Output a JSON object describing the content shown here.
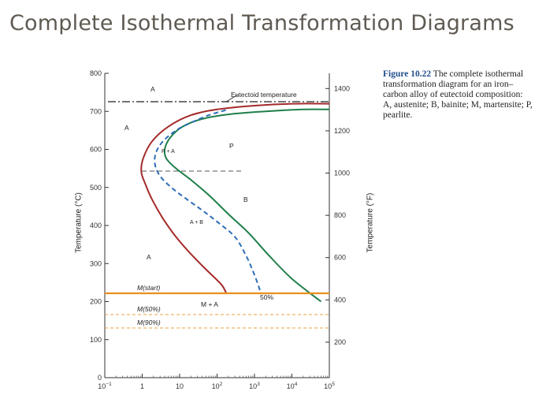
{
  "slide": {
    "title": "Complete Isothermal Transformation Diagrams"
  },
  "caption": {
    "figure_label": "Figure 10.22",
    "text": "The complete isothermal transformation diagram for an iron–carbon alloy of eutectoid composition: A, austenite; B, bainite; M, martensite; P, pearlite."
  },
  "chart_data": {
    "type": "line",
    "x_scale": "log",
    "xlim": [
      0.1,
      100000
    ],
    "ylim": [
      0,
      800
    ],
    "xticks": [
      0.1,
      1,
      10,
      100,
      1000,
      10000,
      100000
    ],
    "xtick_labels": [
      {
        "base": "10",
        "exp": "−1"
      },
      {
        "base": "1",
        "exp": ""
      },
      {
        "base": "10",
        "exp": ""
      },
      {
        "base": "10",
        "exp": "2"
      },
      {
        "base": "10",
        "exp": "3"
      },
      {
        "base": "10",
        "exp": "4"
      },
      {
        "base": "10",
        "exp": "5"
      }
    ],
    "yticks": [
      0,
      100,
      200,
      300,
      400,
      500,
      600,
      700,
      800
    ],
    "ytick_labels": [
      "0",
      "100",
      "200",
      "300",
      "400",
      "500",
      "600",
      "700",
      "800"
    ],
    "ylabel": "Temperature (°C)",
    "y2ticks_F": [
      200,
      400,
      600,
      800,
      1000,
      1200,
      1400
    ],
    "y2tick_labels": [
      "200",
      "400",
      "600",
      "800",
      "1000",
      "1200",
      "1400"
    ],
    "y2label": "Temperature (°F)",
    "series": [
      {
        "color": "#a52a2a",
        "style": "solid",
        "x": [
          180,
          130,
          50,
          20,
          8,
          3.5,
          1.8,
          1.2,
          0.95,
          1.05,
          1.8,
          5,
          20,
          100,
          1000,
          10000,
          100000
        ],
        "y": [
          220,
          245,
          285,
          325,
          370,
          420,
          470,
          510,
          540,
          575,
          620,
          660,
          690,
          705,
          715,
          720,
          720
        ]
      },
      {
        "color": "#1f7f4a",
        "style": "solid",
        "x": [
          60000,
          10000,
          2500,
          700,
          200,
          60,
          20,
          8,
          4.5,
          4,
          5.5,
          12,
          40,
          200,
          2000,
          20000,
          100000
        ],
        "y": [
          200,
          260,
          320,
          380,
          430,
          480,
          520,
          550,
          575,
          600,
          630,
          660,
          680,
          692,
          700,
          705,
          705
        ]
      },
      {
        "color": "#2e6eb8",
        "style": "dashed",
        "x": [
          1400,
          1000,
          600,
          300,
          100,
          40,
          15,
          6,
          3,
          2.2,
          2.3,
          3.5,
          8,
          20,
          60,
          200
        ],
        "y": [
          230,
          270,
          320,
          370,
          410,
          440,
          470,
          500,
          530,
          560,
          590,
          620,
          650,
          670,
          690,
          705
        ]
      }
    ],
    "reference_lines": [
      {
        "label": "Eutectoid temperature",
        "y": 727,
        "color": "#222222",
        "style": "dashdot"
      },
      {
        "label": "M(start)",
        "y": 220,
        "color": "#e8901e",
        "style": "solid"
      },
      {
        "label": "M(50%)",
        "y": 165,
        "color": "#e8a040",
        "style": "dashed"
      },
      {
        "label": "M(90%)",
        "y": 130,
        "color": "#e8a040",
        "style": "dashed"
      }
    ],
    "annotations": [
      "A",
      "A",
      "A",
      "P",
      "B",
      "M + A",
      "50%"
    ]
  }
}
